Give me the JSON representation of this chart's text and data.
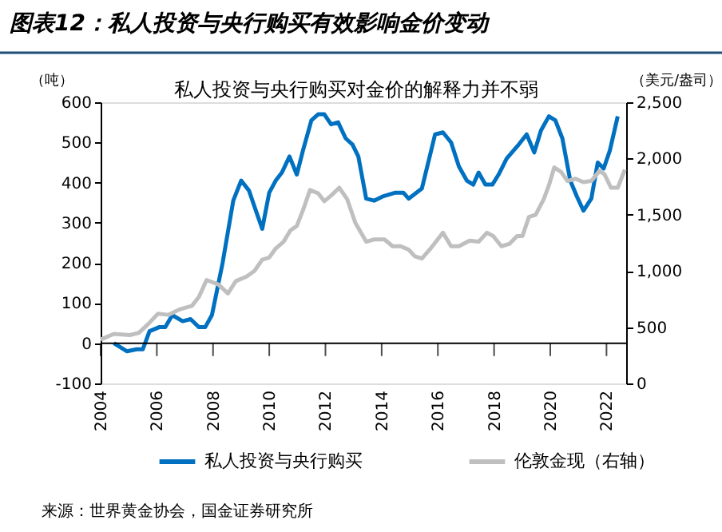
{
  "chart_data": {
    "type": "line",
    "title": "图表12：私人投资与央行购买有效影响金价变动",
    "subtitle": "私人投资与央行购买对金价的解释力并不弱",
    "ylabel": "（吨）",
    "y2label": "（美元/盎司）",
    "annotations": [
      "来源：世界黄金协会，国金证券研究所"
    ],
    "xlim": [
      2004,
      2022.7
    ],
    "xticks": [
      2004,
      2006,
      2008,
      2010,
      2012,
      2014,
      2016,
      2018,
      2020,
      2022
    ],
    "ylim": [
      -100,
      600
    ],
    "yticks": [
      -100,
      0,
      100,
      200,
      300,
      400,
      500,
      600
    ],
    "y2lim": [
      0,
      2500
    ],
    "y2ticks": [
      {
        "value": 0,
        "label": "0"
      },
      {
        "value": 500,
        "label": "500"
      },
      {
        "value": 1000,
        "label": "1,000"
      },
      {
        "value": 1500,
        "label": "1,500"
      },
      {
        "value": 2000,
        "label": "2,000"
      },
      {
        "value": 2500,
        "label": "2,500"
      }
    ],
    "ref_lines": [
      {
        "axis": "y",
        "value": 0,
        "color": "#000000"
      }
    ],
    "grid": false,
    "legend": "bottom",
    "marker": "none",
    "line_style": "solid",
    "series": [
      {
        "name": "私人投资与央行购买",
        "color": "#0070c0",
        "x": [
          2004.47,
          2004.94,
          2005.28,
          2005.5,
          2005.74,
          2006.08,
          2006.3,
          2006.55,
          2006.92,
          2007.2,
          2007.5,
          2007.72,
          2007.96,
          2008.34,
          2008.72,
          2009.0,
          2009.28,
          2009.5,
          2009.75,
          2010.0,
          2010.23,
          2010.45,
          2010.72,
          2010.98,
          2011.2,
          2011.5,
          2011.74,
          2011.96,
          2012.2,
          2012.45,
          2012.72,
          2012.96,
          2013.17,
          2013.45,
          2013.73,
          2014.02,
          2014.49,
          2014.77,
          2014.96,
          2015.43,
          2015.71,
          2015.9,
          2016.18,
          2016.47,
          2016.75,
          2017.03,
          2017.26,
          2017.45,
          2017.69,
          2017.94,
          2018.16,
          2018.45,
          2018.88,
          2019.16,
          2019.43,
          2019.67,
          2019.95,
          2020.18,
          2020.43,
          2020.71,
          2020.95,
          2021.18,
          2021.46,
          2021.69,
          2021.9,
          2022.12,
          2022.4
        ],
        "values": [
          0,
          -20,
          -15,
          -15,
          30,
          40,
          40,
          70,
          55,
          60,
          40,
          40,
          70,
          200,
          355,
          405,
          380,
          335,
          285,
          375,
          405,
          425,
          465,
          420,
          480,
          555,
          570,
          570,
          545,
          550,
          510,
          495,
          465,
          360,
          355,
          365,
          375,
          375,
          360,
          385,
          465,
          520,
          525,
          500,
          440,
          405,
          395,
          425,
          395,
          395,
          420,
          460,
          495,
          520,
          475,
          530,
          565,
          555,
          510,
          405,
          365,
          330,
          360,
          450,
          435,
          480,
          565
        ]
      },
      {
        "name": "伦敦金现（右轴）",
        "color": "#bfbfbf",
        "axis": "y2",
        "x": [
          2004.0,
          2004.47,
          2005.04,
          2005.36,
          2005.7,
          2006.04,
          2006.42,
          2006.83,
          2007.25,
          2007.5,
          2007.77,
          2008.19,
          2008.53,
          2008.81,
          2009.19,
          2009.47,
          2009.75,
          2010.0,
          2010.23,
          2010.51,
          2010.75,
          2010.98,
          2011.2,
          2011.45,
          2011.74,
          2011.96,
          2012.2,
          2012.49,
          2012.77,
          2013.06,
          2013.45,
          2013.73,
          2014.1,
          2014.39,
          2014.67,
          2014.96,
          2015.18,
          2015.43,
          2015.71,
          2016.18,
          2016.47,
          2016.75,
          2017.13,
          2017.45,
          2017.75,
          2017.97,
          2018.26,
          2018.54,
          2018.82,
          2019.01,
          2019.24,
          2019.48,
          2019.77,
          2019.95,
          2020.14,
          2020.39,
          2020.61,
          2020.9,
          2021.18,
          2021.46,
          2021.75,
          2021.93,
          2022.16,
          2022.4,
          2022.65
        ],
        "values": [
          390,
          440,
          430,
          450,
          530,
          620,
          610,
          660,
          690,
          770,
          920,
          880,
          800,
          910,
          950,
          1000,
          1100,
          1120,
          1200,
          1260,
          1360,
          1400,
          1540,
          1720,
          1690,
          1620,
          1670,
          1740,
          1640,
          1430,
          1260,
          1280,
          1280,
          1220,
          1220,
          1190,
          1130,
          1110,
          1190,
          1340,
          1220,
          1220,
          1270,
          1260,
          1340,
          1310,
          1220,
          1240,
          1310,
          1310,
          1480,
          1500,
          1640,
          1760,
          1920,
          1880,
          1800,
          1820,
          1790,
          1800,
          1890,
          1860,
          1740,
          1740,
          1900
        ]
      }
    ]
  }
}
